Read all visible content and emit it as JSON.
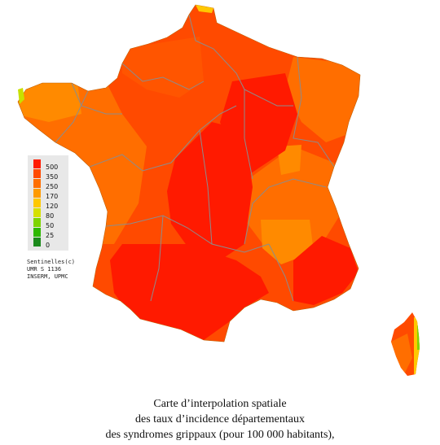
{
  "legend": {
    "items": [
      {
        "label": "500",
        "color": "#ff1a00"
      },
      {
        "label": "350",
        "color": "#ff4a00"
      },
      {
        "label": "250",
        "color": "#ff6e00"
      },
      {
        "label": "170",
        "color": "#ff9a00"
      },
      {
        "label": "120",
        "color": "#ffc800"
      },
      {
        "label": "80",
        "color": "#d6e000"
      },
      {
        "label": "50",
        "color": "#7ed400"
      },
      {
        "label": "25",
        "color": "#2eb800"
      },
      {
        "label": "0",
        "color": "#1c8a1c"
      }
    ]
  },
  "credits": [
    "Sentinelles(c)",
    "UMR S 1136",
    "INSERM, UPMC"
  ],
  "caption": [
    "Carte d’interpolation spatiale",
    "des taux d’incidence départementaux",
    "des syndromes grippaux (pour 100 000 habitants),"
  ],
  "colors": {
    "level_500": "#ff1a00",
    "level_350": "#ff4a00",
    "level_250": "#ff6e00",
    "level_120": "#ffc800",
    "boundary": "#8c8c8c"
  }
}
